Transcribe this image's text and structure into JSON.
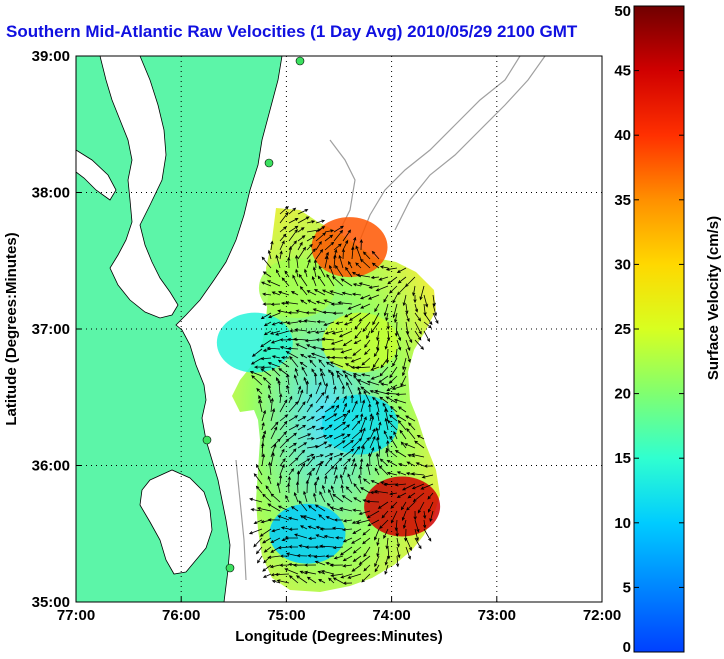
{
  "chart_data": {
    "type": "heatmap",
    "title": "Southern Mid-Atlantic Raw Velocities (1 Day Avg) 2010/05/29 2100 GMT",
    "xlabel": "Longitude (Degrees:Minutes)",
    "ylabel": "Latitude (Degrees:Minutes)",
    "x_ticks": [
      "77:00",
      "76:00",
      "75:00",
      "74:00",
      "73:00",
      "72:00"
    ],
    "y_ticks": [
      "35:00",
      "36:00",
      "37:00",
      "38:00",
      "39:00"
    ],
    "xlim": [
      -77,
      -72
    ],
    "ylim": [
      35,
      39
    ],
    "grid": true,
    "colorbar": {
      "label": "Surface Velocity (cm/s)",
      "min": 0,
      "max": 50,
      "ticks": [
        "0",
        "5",
        "10",
        "15",
        "20",
        "25",
        "30",
        "35",
        "40",
        "45",
        "50"
      ]
    },
    "colors": {
      "land": "#5cf5a8",
      "coastline": "#000000",
      "bathymetry": "#a0a0a0",
      "grid": "#000000",
      "vector": "#000000"
    },
    "velocity_regions": [
      {
        "lon": -74.9,
        "lat": 37.3,
        "speed": 22
      },
      {
        "lon": -74.3,
        "lat": 36.9,
        "speed": 24
      },
      {
        "lon": -74.3,
        "lat": 36.3,
        "speed": 12
      },
      {
        "lon": -74.8,
        "lat": 35.5,
        "speed": 10
      },
      {
        "lon": -73.9,
        "lat": 35.7,
        "speed": 45
      },
      {
        "lon": -74.4,
        "lat": 37.6,
        "speed": 38
      },
      {
        "lon": -75.3,
        "lat": 36.9,
        "speed": 14
      }
    ]
  }
}
